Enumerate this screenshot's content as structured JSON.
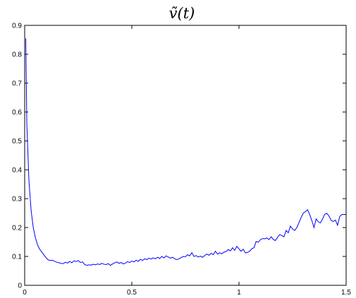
{
  "chart_data": {
    "type": "line",
    "title": "ṽ(t)",
    "xlabel": "",
    "ylabel": "",
    "xlim": [
      0,
      1.5
    ],
    "ylim": [
      0,
      0.9
    ],
    "xticks": [
      0,
      0.5,
      1,
      1.5
    ],
    "xtick_labels": [
      "0",
      "0.5",
      "1",
      "1.5"
    ],
    "yticks": [
      0,
      0.1,
      0.2,
      0.3,
      0.4,
      0.5,
      0.6,
      0.7,
      0.8,
      0.9
    ],
    "ytick_labels": [
      "0",
      "0.1",
      "0.2",
      "0.3",
      "0.4",
      "0.5",
      "0.6",
      "0.7",
      "0.8",
      "0.9"
    ],
    "grid": false,
    "line_color": "#0000ff",
    "series": [
      {
        "x": [
          0.005,
          0.01,
          0.02,
          0.03,
          0.04,
          0.05,
          0.06,
          0.07,
          0.08,
          0.09,
          0.1,
          0.11,
          0.12,
          0.13,
          0.14,
          0.15,
          0.16,
          0.17,
          0.18,
          0.19,
          0.2,
          0.21,
          0.22,
          0.23,
          0.24,
          0.25,
          0.26,
          0.27,
          0.28,
          0.29,
          0.3,
          0.31,
          0.32,
          0.33,
          0.34,
          0.35,
          0.36,
          0.37,
          0.38,
          0.39,
          0.4,
          0.41,
          0.42,
          0.43,
          0.44,
          0.45,
          0.46,
          0.47,
          0.48,
          0.49,
          0.5,
          0.51,
          0.52,
          0.53,
          0.54,
          0.55,
          0.56,
          0.57,
          0.58,
          0.59,
          0.6,
          0.61,
          0.62,
          0.63,
          0.64,
          0.65,
          0.66,
          0.67,
          0.68,
          0.69,
          0.7,
          0.71,
          0.72,
          0.73,
          0.74,
          0.75,
          0.76,
          0.77,
          0.78,
          0.79,
          0.8,
          0.81,
          0.82,
          0.83,
          0.84,
          0.85,
          0.86,
          0.87,
          0.88,
          0.89,
          0.9,
          0.91,
          0.92,
          0.93,
          0.94,
          0.95,
          0.96,
          0.97,
          0.98,
          0.99,
          1.0,
          1.01,
          1.02,
          1.03,
          1.04,
          1.05,
          1.06,
          1.07,
          1.08,
          1.09,
          1.1,
          1.11,
          1.12,
          1.13,
          1.14,
          1.15,
          1.16,
          1.17,
          1.18,
          1.19,
          1.2,
          1.21,
          1.22,
          1.23,
          1.24,
          1.25,
          1.26,
          1.27,
          1.28,
          1.29,
          1.3,
          1.31,
          1.32,
          1.33,
          1.34,
          1.35,
          1.36,
          1.37,
          1.38,
          1.39,
          1.4,
          1.41,
          1.42,
          1.43,
          1.44,
          1.45,
          1.46,
          1.47,
          1.48,
          1.49,
          1.5
        ],
        "y": [
          0.855,
          0.56,
          0.36,
          0.26,
          0.2,
          0.165,
          0.14,
          0.125,
          0.115,
          0.105,
          0.095,
          0.088,
          0.086,
          0.087,
          0.083,
          0.08,
          0.078,
          0.076,
          0.075,
          0.08,
          0.077,
          0.083,
          0.078,
          0.085,
          0.082,
          0.086,
          0.079,
          0.081,
          0.072,
          0.069,
          0.071,
          0.07,
          0.073,
          0.071,
          0.074,
          0.072,
          0.076,
          0.073,
          0.072,
          0.075,
          0.069,
          0.074,
          0.078,
          0.081,
          0.076,
          0.079,
          0.074,
          0.077,
          0.082,
          0.079,
          0.084,
          0.081,
          0.087,
          0.083,
          0.09,
          0.086,
          0.092,
          0.089,
          0.094,
          0.091,
          0.095,
          0.092,
          0.097,
          0.093,
          0.1,
          0.095,
          0.102,
          0.098,
          0.094,
          0.097,
          0.092,
          0.089,
          0.092,
          0.096,
          0.1,
          0.099,
          0.106,
          0.102,
          0.113,
          0.1,
          0.103,
          0.098,
          0.101,
          0.097,
          0.103,
          0.108,
          0.104,
          0.111,
          0.106,
          0.118,
          0.108,
          0.113,
          0.109,
          0.115,
          0.117,
          0.124,
          0.119,
          0.13,
          0.121,
          0.135,
          0.126,
          0.118,
          0.125,
          0.112,
          0.114,
          0.118,
          0.127,
          0.13,
          0.152,
          0.149,
          0.158,
          0.162,
          0.161,
          0.164,
          0.158,
          0.168,
          0.159,
          0.155,
          0.166,
          0.176,
          0.172,
          0.168,
          0.19,
          0.182,
          0.205,
          0.195,
          0.19,
          0.2,
          0.217,
          0.235,
          0.25,
          0.255,
          0.262,
          0.245,
          0.224,
          0.2,
          0.23,
          0.22,
          0.216,
          0.23,
          0.246,
          0.249,
          0.24,
          0.225,
          0.221,
          0.226,
          0.208,
          0.238,
          0.245,
          0.245,
          0.245
        ]
      }
    ]
  }
}
